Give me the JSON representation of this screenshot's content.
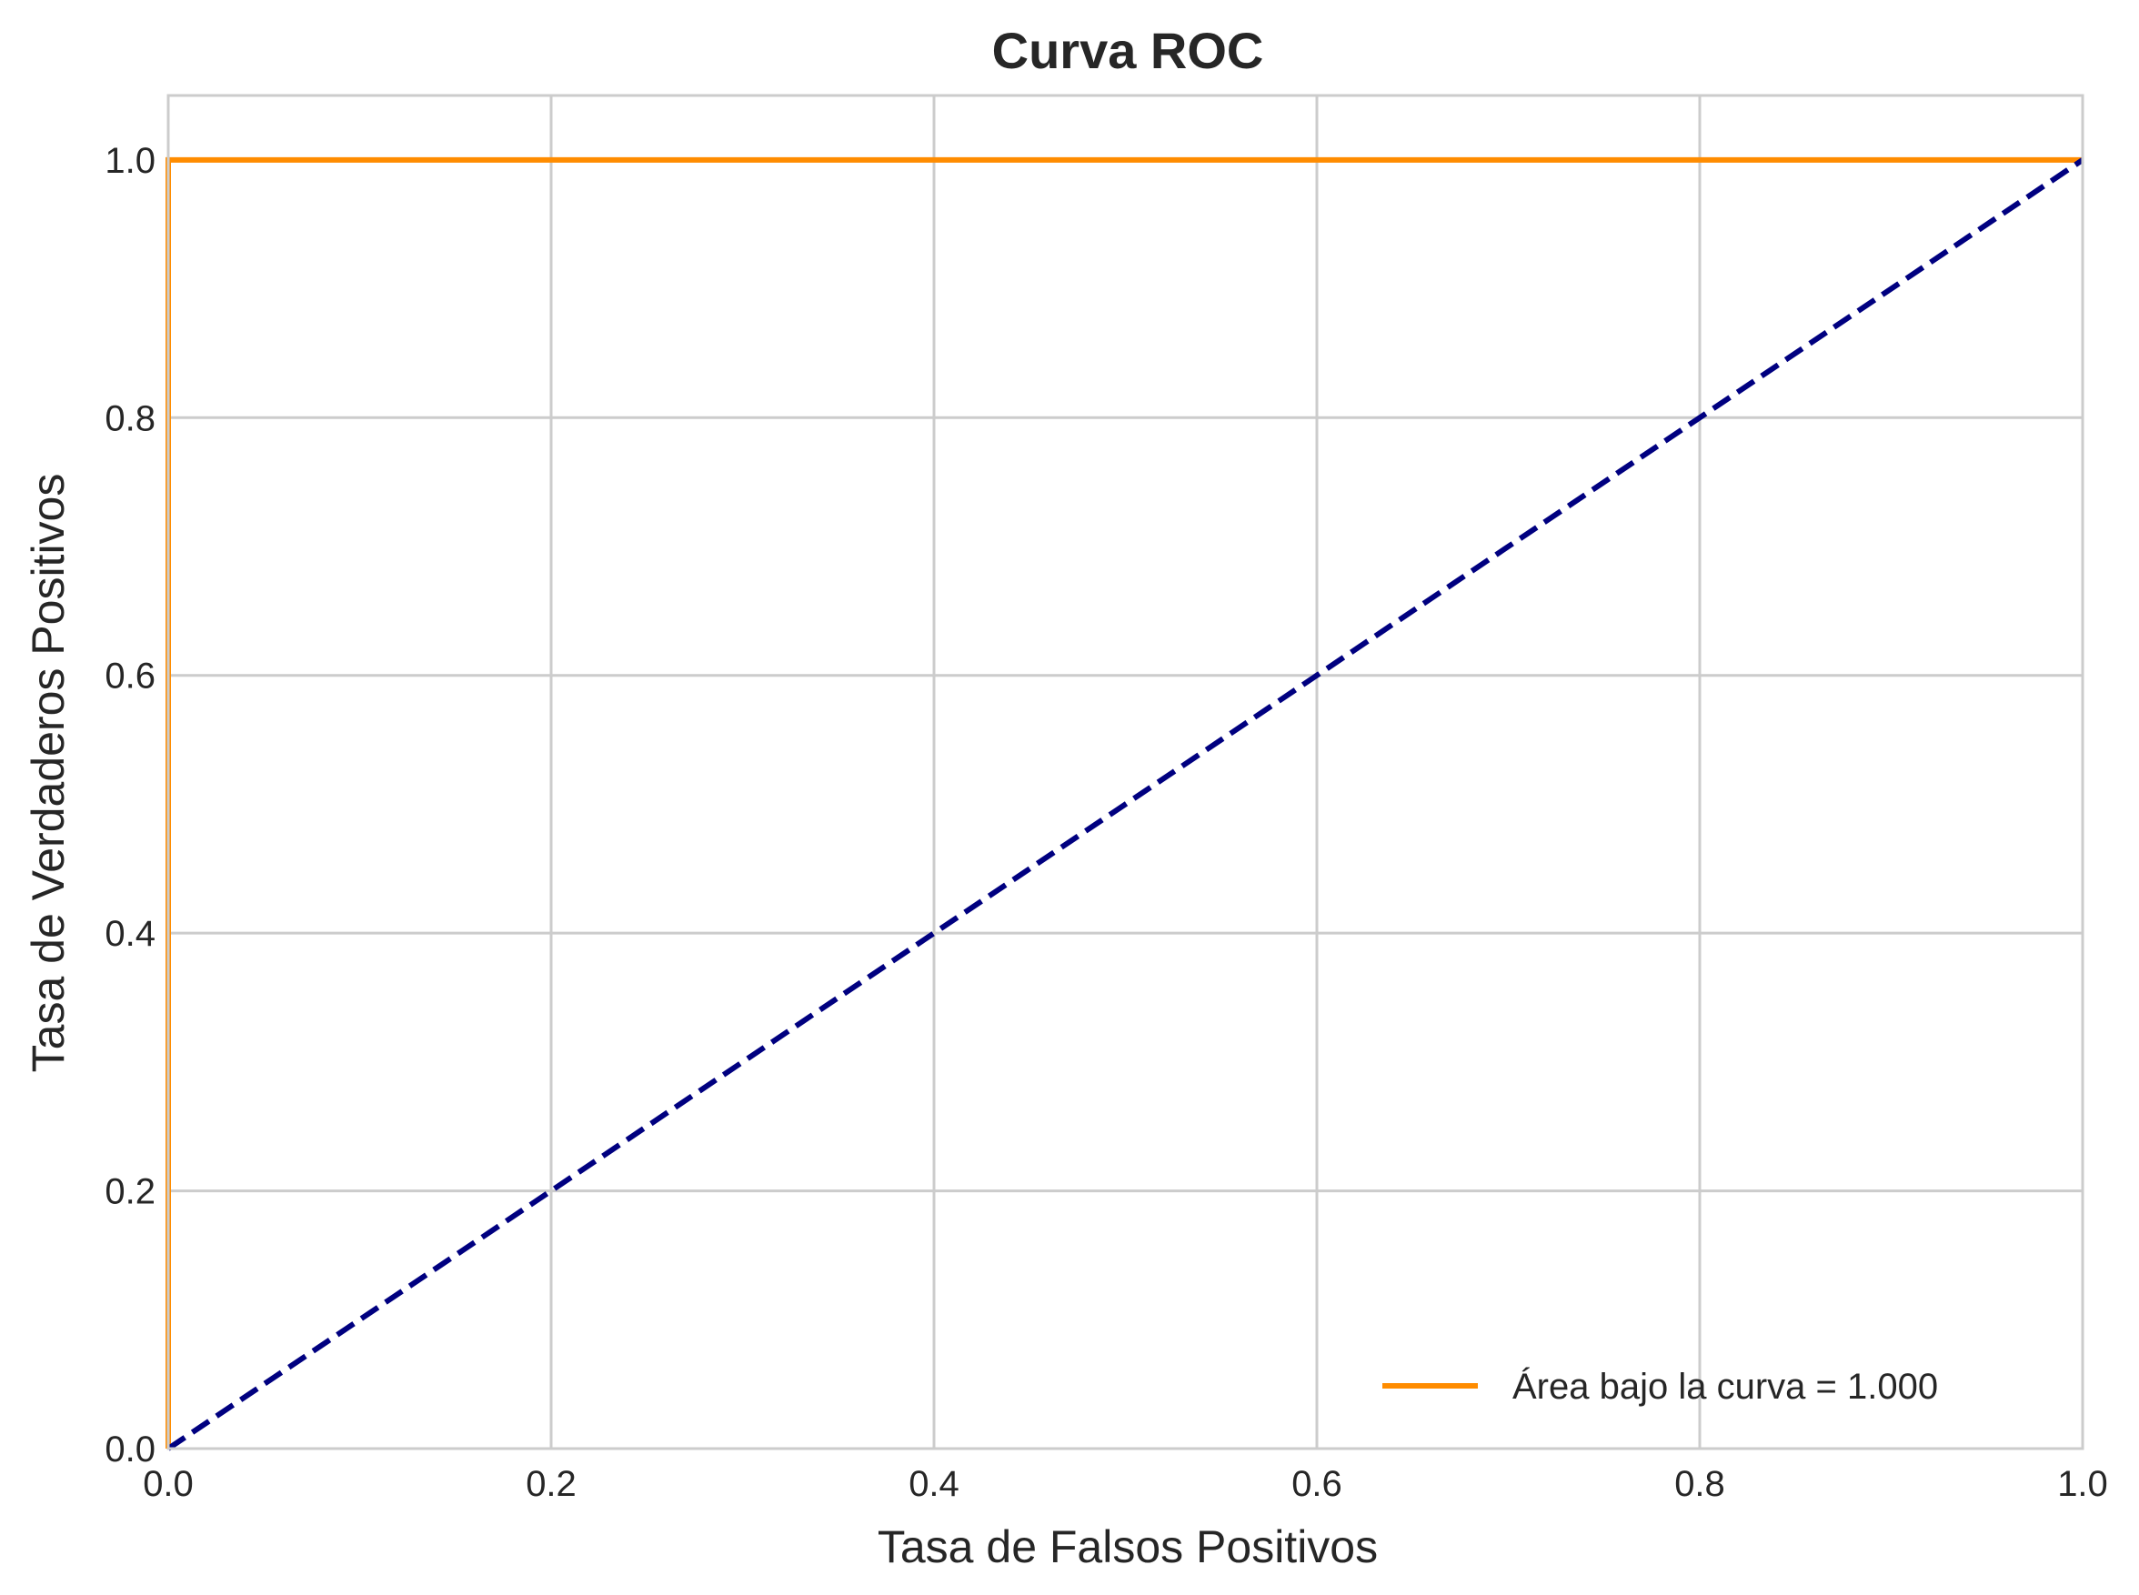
{
  "chart_data": {
    "type": "line",
    "title": "Curva ROC",
    "xlabel": "Tasa de Falsos Positivos",
    "ylabel": "Tasa de Verdaderos Positivos",
    "xlim": [
      0.0,
      1.0
    ],
    "ylim": [
      0.0,
      1.05
    ],
    "grid": true,
    "legend_position": "bottom-right",
    "x_ticks": [
      0.0,
      0.2,
      0.4,
      0.6,
      0.8,
      1.0
    ],
    "x_tick_labels": [
      "0.0",
      "0.2",
      "0.4",
      "0.6",
      "0.8",
      "1.0"
    ],
    "y_ticks": [
      0.0,
      0.2,
      0.4,
      0.6,
      0.8,
      1.0
    ],
    "y_tick_labels": [
      "0.0",
      "0.2",
      "0.4",
      "0.6",
      "0.8",
      "1.0"
    ],
    "series": [
      {
        "name": "Área bajo la curva = 1.000",
        "x": [
          0.0,
          0.0,
          1.0
        ],
        "y": [
          0.0,
          1.0,
          1.0
        ],
        "color": "#ff8c00",
        "style": "solid",
        "in_legend": true
      },
      {
        "x": [
          0.0,
          1.0
        ],
        "y": [
          0.0,
          1.0
        ],
        "color": "#000080",
        "style": "dashed",
        "in_legend": false
      }
    ]
  }
}
